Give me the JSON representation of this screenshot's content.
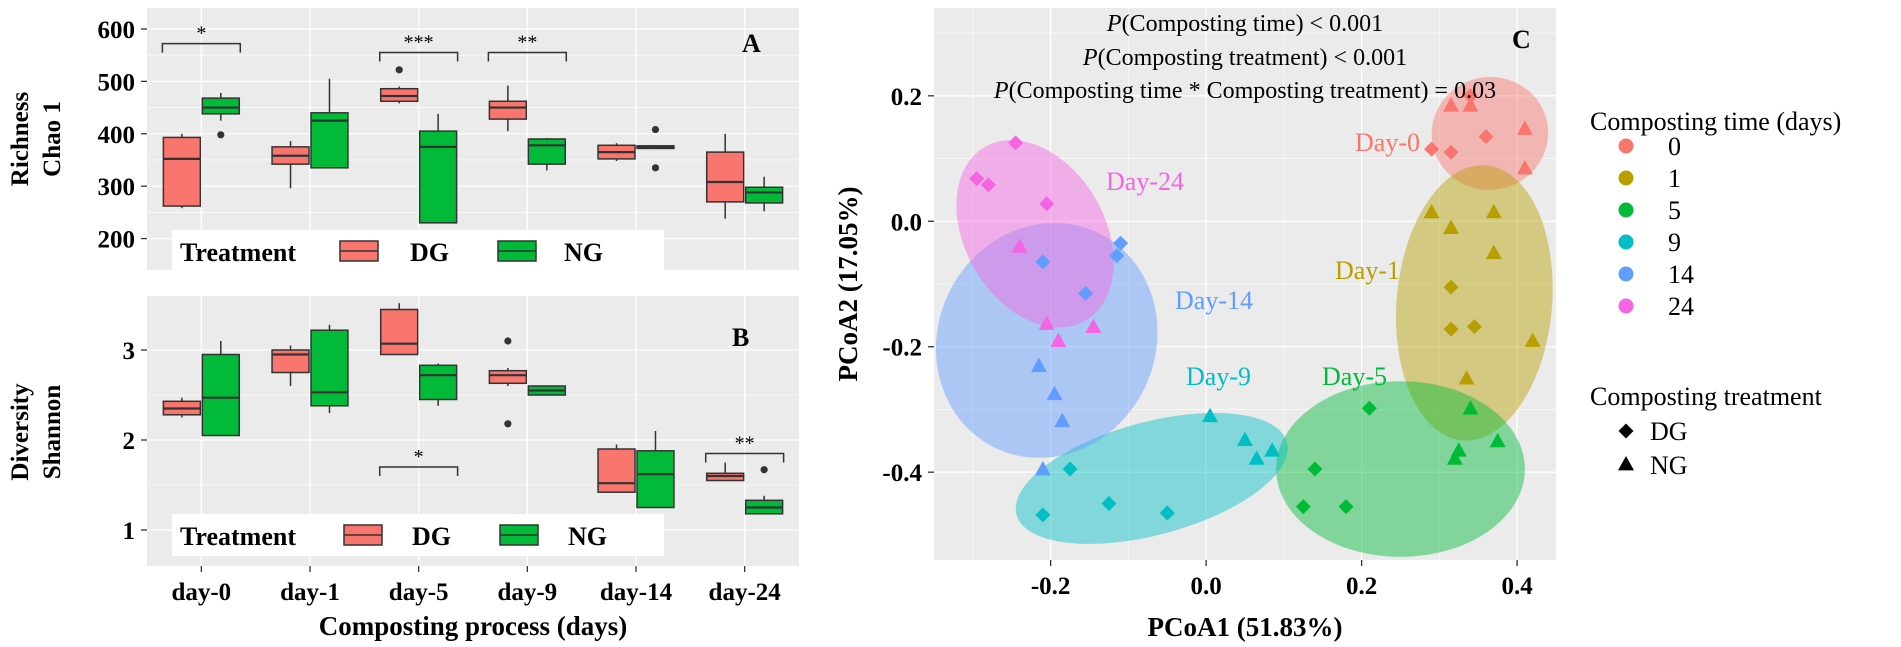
{
  "colors": {
    "panel_bg": "#ebebeb",
    "grid": "#ffffff",
    "dg": "#f8766d",
    "ng": "#00ba38",
    "day0": "#f8766d",
    "day1": "#b79f00",
    "day5": "#00ba38",
    "day9": "#00bfc4",
    "day14": "#619cff",
    "day24": "#f564e3"
  },
  "chart_data": [
    {
      "panel": "A",
      "type": "box",
      "ylabel_line1": "Richness",
      "ylabel_line2": "Chao 1",
      "ylim": [
        140,
        640
      ],
      "yticks": [
        "200",
        "300",
        "400",
        "500",
        "600"
      ],
      "categories": [
        "day-0",
        "day-1",
        "day-5",
        "day-9",
        "day-14",
        "day-24"
      ],
      "legend": {
        "title": "Treatment",
        "items": [
          "DG",
          "NG"
        ]
      },
      "series": [
        {
          "name": "DG",
          "boxes": [
            {
              "min": 258,
              "q1": 262,
              "median": 352,
              "q3": 393,
              "max": 400,
              "outliers": []
            },
            {
              "min": 296,
              "q1": 342,
              "median": 358,
              "q3": 375,
              "max": 386,
              "outliers": []
            },
            {
              "min": 458,
              "q1": 462,
              "median": 472,
              "q3": 486,
              "max": 490,
              "outliers": [
                522
              ]
            },
            {
              "min": 405,
              "q1": 428,
              "median": 450,
              "q3": 462,
              "max": 492,
              "outliers": []
            },
            {
              "min": 348,
              "q1": 352,
              "median": 365,
              "q3": 378,
              "max": 382,
              "outliers": []
            },
            {
              "min": 238,
              "q1": 270,
              "median": 308,
              "q3": 365,
              "max": 400,
              "outliers": []
            }
          ]
        },
        {
          "name": "NG",
          "boxes": [
            {
              "min": 425,
              "q1": 438,
              "median": 450,
              "q3": 468,
              "max": 478,
              "outliers": [
                398
              ]
            },
            {
              "min": 335,
              "q1": 335,
              "median": 425,
              "q3": 440,
              "max": 505,
              "outliers": []
            },
            {
              "min": 230,
              "q1": 230,
              "median": 375,
              "q3": 405,
              "max": 438,
              "outliers": []
            },
            {
              "min": 330,
              "q1": 342,
              "median": 378,
              "q3": 390,
              "max": 392,
              "outliers": []
            },
            {
              "min": 372,
              "q1": 372,
              "median": 375,
              "q3": 377,
              "max": 378,
              "outliers": [
                408,
                335
              ]
            },
            {
              "min": 252,
              "q1": 268,
              "median": 288,
              "q3": 298,
              "max": 318,
              "outliers": []
            }
          ]
        }
      ],
      "significance": [
        {
          "from": "day-0",
          "label": "*",
          "value": 572
        },
        {
          "from": "day-5",
          "label": "***",
          "value": 555
        },
        {
          "from": "day-9",
          "label": "**",
          "value": 555
        }
      ]
    },
    {
      "panel": "B",
      "type": "box",
      "ylabel_line1": "Diversity",
      "ylabel_line2": "Shannon",
      "ylim": [
        0.6,
        3.6
      ],
      "yticks": [
        "1",
        "2",
        "3"
      ],
      "categories": [
        "day-0",
        "day-1",
        "day-5",
        "day-9",
        "day-14",
        "day-24"
      ],
      "xlabel": "Composting process (days)",
      "legend": {
        "title": "Treatment",
        "items": [
          "DG",
          "NG"
        ]
      },
      "series": [
        {
          "name": "DG",
          "boxes": [
            {
              "min": 2.25,
              "q1": 2.28,
              "median": 2.35,
              "q3": 2.43,
              "max": 2.47,
              "outliers": []
            },
            {
              "min": 2.6,
              "q1": 2.75,
              "median": 2.95,
              "q3": 3.0,
              "max": 3.05,
              "outliers": []
            },
            {
              "min": 2.95,
              "q1": 2.95,
              "median": 3.07,
              "q3": 3.45,
              "max": 3.52,
              "outliers": []
            },
            {
              "min": 2.6,
              "q1": 2.63,
              "median": 2.72,
              "q3": 2.77,
              "max": 2.8,
              "outliers": [
                3.1,
                2.18
              ]
            },
            {
              "min": 1.42,
              "q1": 1.42,
              "median": 1.52,
              "q3": 1.9,
              "max": 1.95,
              "outliers": []
            },
            {
              "min": 1.55,
              "q1": 1.55,
              "median": 1.6,
              "q3": 1.63,
              "max": 1.75,
              "outliers": []
            }
          ]
        },
        {
          "name": "NG",
          "boxes": [
            {
              "min": 2.05,
              "q1": 2.05,
              "median": 2.47,
              "q3": 2.95,
              "max": 3.1,
              "outliers": []
            },
            {
              "min": 2.3,
              "q1": 2.38,
              "median": 2.53,
              "q3": 3.22,
              "max": 3.28,
              "outliers": []
            },
            {
              "min": 2.38,
              "q1": 2.45,
              "median": 2.72,
              "q3": 2.83,
              "max": 2.85,
              "outliers": []
            },
            {
              "min": 2.5,
              "q1": 2.5,
              "median": 2.55,
              "q3": 2.6,
              "max": 2.6,
              "outliers": []
            },
            {
              "min": 1.25,
              "q1": 1.25,
              "median": 1.62,
              "q3": 1.88,
              "max": 2.1,
              "outliers": []
            },
            {
              "min": 1.18,
              "q1": 1.18,
              "median": 1.25,
              "q3": 1.33,
              "max": 1.38,
              "outliers": [
                1.67
              ]
            }
          ]
        }
      ],
      "significance": [
        {
          "from": "day-5",
          "label": "*",
          "value": 1.7
        },
        {
          "from": "day-24",
          "label": "**",
          "value": 1.85
        }
      ]
    },
    {
      "panel": "C",
      "type": "scatter",
      "xlabel": "PCoA1 (51.83%)",
      "ylabel": "PCoA2 (17.05%)",
      "xlim": [
        -0.35,
        0.45
      ],
      "ylim": [
        -0.54,
        0.34
      ],
      "xticks": [
        "-0.2",
        "0.0",
        "0.2",
        "0.4"
      ],
      "yticks": [
        "-0.4",
        "-0.2",
        "0.0",
        "0.2"
      ],
      "annotations": [
        {
          "prefix": "P",
          "rest": "(Composting time) < 0.001"
        },
        {
          "prefix": "P",
          "rest": "(Composting treatment)  < 0.001"
        },
        {
          "prefix": "P",
          "rest": "(Composting time * Composting treatment) = 0.03"
        }
      ],
      "legend_time": {
        "title": "Composting time (days)",
        "items": [
          "0",
          "1",
          "5",
          "9",
          "14",
          "24"
        ]
      },
      "legend_treatment": {
        "title": "Composting treatment",
        "items": [
          "DG",
          "NG"
        ]
      },
      "groups": [
        {
          "day": "0",
          "label": "Day-0",
          "ellipse": {
            "cx": 0.365,
            "cy": 0.14,
            "rx": 0.075,
            "ry": 0.09,
            "angle": -10
          },
          "DG": [
            [
              0.29,
              0.115
            ],
            [
              0.315,
              0.11
            ],
            [
              0.36,
              0.135
            ],
            [
              0.34,
              0.2
            ]
          ],
          "NG": [
            [
              0.315,
              0.185
            ],
            [
              0.34,
              0.185
            ],
            [
              0.41,
              0.148
            ],
            [
              0.41,
              0.085
            ]
          ]
        },
        {
          "day": "1",
          "label": "Day-1",
          "ellipse": {
            "cx": 0.345,
            "cy": -0.13,
            "rx": 0.1,
            "ry": 0.22,
            "angle": 5
          },
          "DG": [
            [
              0.315,
              -0.105
            ],
            [
              0.315,
              -0.172
            ],
            [
              0.345,
              -0.168
            ]
          ],
          "NG": [
            [
              0.29,
              0.015
            ],
            [
              0.37,
              0.015
            ],
            [
              0.37,
              -0.05
            ],
            [
              0.315,
              -0.01
            ],
            [
              0.42,
              -0.19
            ],
            [
              0.335,
              -0.25
            ]
          ]
        },
        {
          "day": "5",
          "label": "Day-5",
          "ellipse": {
            "cx": 0.25,
            "cy": -0.395,
            "rx": 0.16,
            "ry": 0.14,
            "angle": 0
          },
          "DG": [
            [
              0.21,
              -0.298
            ],
            [
              0.14,
              -0.395
            ],
            [
              0.18,
              -0.455
            ],
            [
              0.125,
              -0.455
            ]
          ],
          "NG": [
            [
              0.34,
              -0.298
            ],
            [
              0.325,
              -0.365
            ],
            [
              0.32,
              -0.378
            ],
            [
              0.375,
              -0.35
            ]
          ]
        },
        {
          "day": "9",
          "label": "Day-9",
          "ellipse": {
            "cx": -0.07,
            "cy": -0.41,
            "rx": 0.18,
            "ry": 0.09,
            "angle": -15
          },
          "DG": [
            [
              -0.175,
              -0.395
            ],
            [
              -0.21,
              -0.468
            ],
            [
              -0.125,
              -0.45
            ],
            [
              -0.05,
              -0.465
            ]
          ],
          "NG": [
            [
              0.005,
              -0.31
            ],
            [
              0.05,
              -0.348
            ],
            [
              0.065,
              -0.378
            ],
            [
              0.085,
              -0.365
            ]
          ]
        },
        {
          "day": "14",
          "label": "Day-14",
          "ellipse": {
            "cx": -0.205,
            "cy": -0.19,
            "rx": 0.14,
            "ry": 0.19,
            "angle": 25
          },
          "DG": [
            [
              -0.21,
              -0.065
            ],
            [
              -0.155,
              -0.115
            ],
            [
              -0.11,
              -0.035
            ],
            [
              -0.115,
              -0.055
            ]
          ],
          "NG": [
            [
              -0.215,
              -0.23
            ],
            [
              -0.195,
              -0.275
            ],
            [
              -0.185,
              -0.318
            ],
            [
              -0.21,
              -0.395
            ]
          ]
        },
        {
          "day": "24",
          "label": "Day-24",
          "ellipse": {
            "cx": -0.22,
            "cy": -0.02,
            "rx": 0.09,
            "ry": 0.16,
            "angle": -30
          },
          "DG": [
            [
              -0.295,
              0.068
            ],
            [
              -0.28,
              0.058
            ],
            [
              -0.245,
              0.125
            ],
            [
              -0.205,
              0.028
            ]
          ],
          "NG": [
            [
              -0.24,
              -0.04
            ],
            [
              -0.205,
              -0.163
            ],
            [
              -0.19,
              -0.19
            ],
            [
              -0.145,
              -0.168
            ]
          ]
        }
      ]
    }
  ]
}
